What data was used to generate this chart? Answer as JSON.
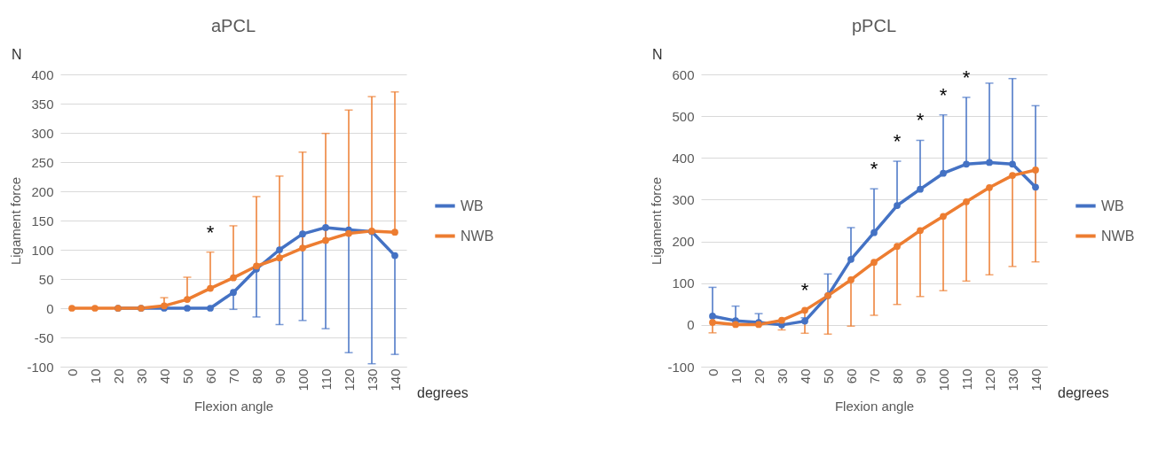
{
  "chart_data": [
    {
      "type": "line",
      "title": "aPCL",
      "xlabel": "Flexion angle",
      "ylabel": "Ligament force",
      "categories": [
        "0",
        "10",
        "20",
        "30",
        "40",
        "50",
        "60",
        "70",
        "80",
        "90",
        "100",
        "110",
        "120",
        "130",
        "140"
      ],
      "series": [
        {
          "name": "WB",
          "color": "#4472c4",
          "values": [
            null,
            null,
            0,
            0,
            0,
            0,
            0,
            27,
            67,
            100,
            127,
            138,
            134,
            131,
            90
          ],
          "errors": [
            null,
            null,
            null,
            null,
            null,
            null,
            null,
            [
              -2,
              27
            ],
            [
              -15,
              67
            ],
            [
              -28,
              100
            ],
            [
              -21,
              127
            ],
            [
              -35,
              138
            ],
            [
              -76,
              134
            ],
            [
              -95,
              131
            ],
            [
              -79,
              90
            ]
          ]
        },
        {
          "name": "NWB",
          "color": "#ed7d31",
          "values": [
            0,
            0,
            0,
            0,
            4,
            15,
            34,
            52,
            72,
            86,
            103,
            116,
            128,
            132,
            130
          ],
          "errors": [
            null,
            null,
            null,
            null,
            [
              4,
              18
            ],
            [
              15,
              53
            ],
            [
              34,
              96
            ],
            [
              52,
              141
            ],
            [
              72,
              191
            ],
            [
              86,
              226
            ],
            [
              103,
              267
            ],
            [
              116,
              299
            ],
            [
              128,
              339
            ],
            [
              132,
              362
            ],
            [
              130,
              370
            ]
          ]
        }
      ],
      "ylim": [
        -100,
        400
      ],
      "yticks": [
        -100,
        -50,
        0,
        50,
        100,
        150,
        200,
        250,
        300,
        350,
        400
      ],
      "grid": "y",
      "legend": "right",
      "marker": "circle",
      "annotations": [
        "N",
        "degrees",
        {
          "text": "*",
          "x": "60",
          "y": 96
        }
      ]
    },
    {
      "type": "line",
      "title": "pPCL",
      "xlabel": "Flexion angle",
      "ylabel": "Ligament force",
      "categories": [
        "0",
        "10",
        "20",
        "30",
        "40",
        "50",
        "60",
        "70",
        "80",
        "90",
        "100",
        "110",
        "120",
        "130",
        "140"
      ],
      "series": [
        {
          "name": "WB",
          "color": "#4472c4",
          "values": [
            21,
            10,
            6,
            0,
            9,
            70,
            157,
            221,
            286,
            325,
            363,
            385,
            389,
            385,
            330
          ],
          "errors": [
            [
              21,
              90
            ],
            [
              10,
              45
            ],
            [
              6,
              27
            ],
            null,
            [
              9,
              17
            ],
            [
              70,
              122
            ],
            [
              157,
              233
            ],
            [
              221,
              326
            ],
            [
              286,
              392
            ],
            [
              325,
              442
            ],
            [
              363,
              503
            ],
            [
              385,
              545
            ],
            [
              389,
              579
            ],
            [
              385,
              590
            ],
            [
              330,
              525
            ]
          ]
        },
        {
          "name": "NWB",
          "color": "#ed7d31",
          "values": [
            6,
            1,
            1,
            11,
            35,
            70,
            108,
            150,
            188,
            226,
            260,
            295,
            329,
            358,
            371
          ],
          "errors": [
            [
              -19,
              6
            ],
            null,
            null,
            [
              -12,
              11
            ],
            [
              -20,
              35
            ],
            [
              -22,
              70
            ],
            [
              -3,
              108
            ],
            [
              23,
              150
            ],
            [
              49,
              188
            ],
            [
              68,
              226
            ],
            [
              82,
              260
            ],
            [
              105,
              295
            ],
            [
              120,
              329
            ],
            [
              140,
              358
            ],
            [
              151,
              371
            ]
          ]
        }
      ],
      "ylim": [
        -100,
        600
      ],
      "yticks": [
        -100,
        0,
        100,
        200,
        300,
        400,
        500,
        600
      ],
      "grid": "y",
      "legend": "right",
      "marker": "circle",
      "annotations": [
        "N",
        "degrees",
        {
          "text": "*",
          "x": "40",
          "y": 35
        },
        {
          "text": "*",
          "x": "70",
          "y": 326
        },
        {
          "text": "*",
          "x": "80",
          "y": 392
        },
        {
          "text": "*",
          "x": "90",
          "y": 442
        },
        {
          "text": "*",
          "x": "100",
          "y": 503
        },
        {
          "text": "*",
          "x": "110",
          "y": 545
        }
      ]
    }
  ]
}
